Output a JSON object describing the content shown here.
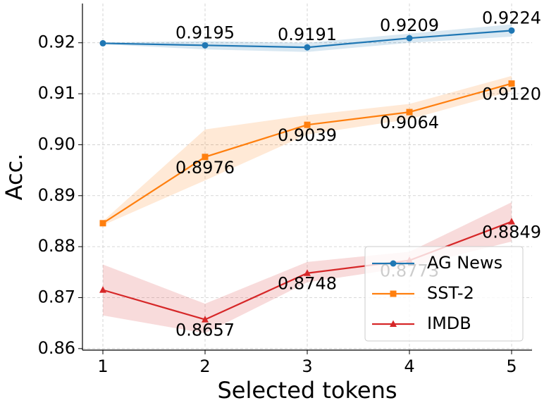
{
  "chart_data": {
    "type": "line",
    "x_label": "Selected tokens",
    "y_label": "Acc.",
    "x": [
      1,
      2,
      3,
      4,
      5
    ],
    "xlim": [
      0.8,
      5.2
    ],
    "xticks": [
      1,
      2,
      3,
      4,
      5
    ],
    "ylim": [
      0.8597,
      0.9277
    ],
    "yticks": [
      0.86,
      0.87,
      0.88,
      0.89,
      {
        "value": 0.9,
        "label": "0.90"
      },
      0.91,
      0.92
    ],
    "grid": true,
    "legend": "lower right",
    "series": [
      {
        "name": "AG News",
        "color": "#1f77b4",
        "marker": "circle",
        "values": [
          0.9199,
          0.9195,
          0.9191,
          0.9209,
          0.9224
        ],
        "value_labels": [
          null,
          "0.9195",
          "0.9191",
          "0.9209",
          "0.9224"
        ],
        "lower": [
          0.9197,
          0.9187,
          0.9182,
          0.92,
          0.9212
        ],
        "upper": [
          0.9201,
          0.9203,
          0.92,
          0.9218,
          0.9236
        ]
      },
      {
        "name": "SST-2",
        "color": "#ff7f0e",
        "marker": "square",
        "values": [
          0.8846,
          0.8976,
          0.9039,
          0.9064,
          0.912
        ],
        "value_labels": [
          null,
          "0.8976",
          "0.9039",
          "0.9064",
          "0.9120"
        ],
        "lower": [
          0.8842,
          0.893,
          0.902,
          0.905,
          0.9105
        ],
        "upper": [
          0.885,
          0.903,
          0.9058,
          0.908,
          0.9135
        ]
      },
      {
        "name": "IMDB",
        "color": "#d62728",
        "marker": "triangle",
        "values": [
          0.8715,
          0.8657,
          0.8748,
          0.8773,
          0.8849
        ],
        "value_labels": [
          null,
          "0.8657",
          "0.8748",
          "0.8773",
          "0.8849"
        ],
        "lower": [
          0.8665,
          0.863,
          0.873,
          0.876,
          0.881
        ],
        "upper": [
          0.8765,
          0.8688,
          0.877,
          0.879,
          0.8887
        ]
      }
    ]
  }
}
